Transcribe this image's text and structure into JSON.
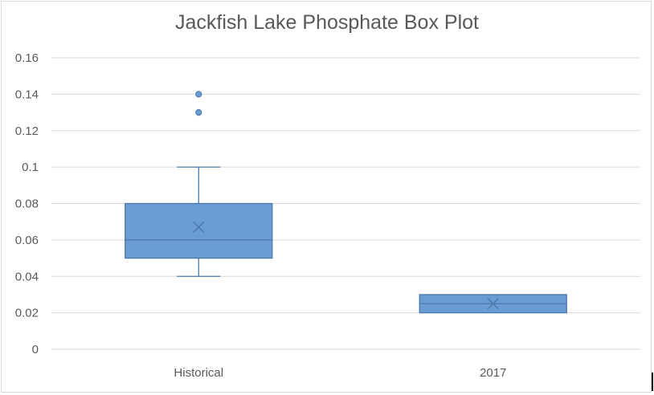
{
  "chart_data": {
    "type": "box",
    "title": "Jackfish Lake Phosphate Box Plot",
    "xlabel": "",
    "ylabel": "",
    "ylim": [
      0,
      0.16
    ],
    "yticks": [
      "0",
      "0.02",
      "0.04",
      "0.06",
      "0.08",
      "0.1",
      "0.12",
      "0.14",
      "0.16"
    ],
    "grid": true,
    "legend": "none",
    "color": "#6a9bd2",
    "stroke_color": "#4a78aa",
    "categories": [
      "Historical",
      "2017"
    ],
    "boxes": [
      {
        "category": "Historical",
        "min": 0.04,
        "q1": 0.05,
        "median": 0.06,
        "q3": 0.08,
        "max": 0.1,
        "mean": 0.067,
        "outliers": [
          0.13,
          0.14
        ]
      },
      {
        "category": "2017",
        "min": 0.02,
        "q1": 0.02,
        "median": 0.025,
        "q3": 0.03,
        "max": 0.03,
        "mean": 0.025,
        "outliers": []
      }
    ]
  }
}
